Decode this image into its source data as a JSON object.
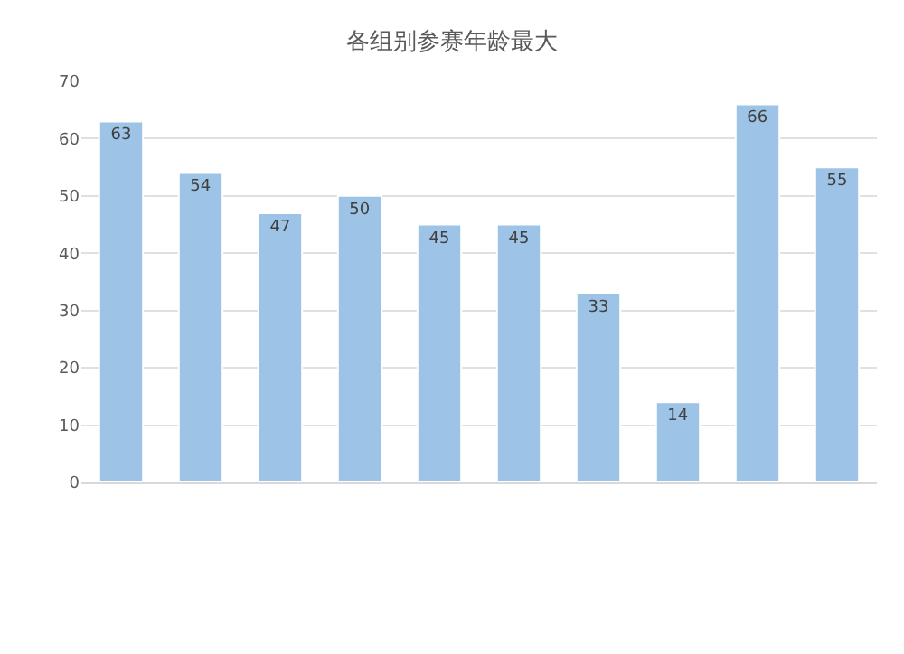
{
  "chart_data": {
    "type": "bar",
    "title": "各组别参赛年龄最大",
    "categories": [
      null,
      null,
      null,
      null,
      null,
      null,
      null,
      null,
      null,
      null
    ],
    "values": [
      63,
      54,
      47,
      50,
      45,
      45,
      33,
      14,
      66,
      55
    ],
    "color": "#9dc3e6",
    "ylim": [
      0,
      70
    ],
    "yticks": [
      0,
      10,
      20,
      30,
      40,
      50,
      60,
      70
    ],
    "grid": "y",
    "data_labels": true
  }
}
